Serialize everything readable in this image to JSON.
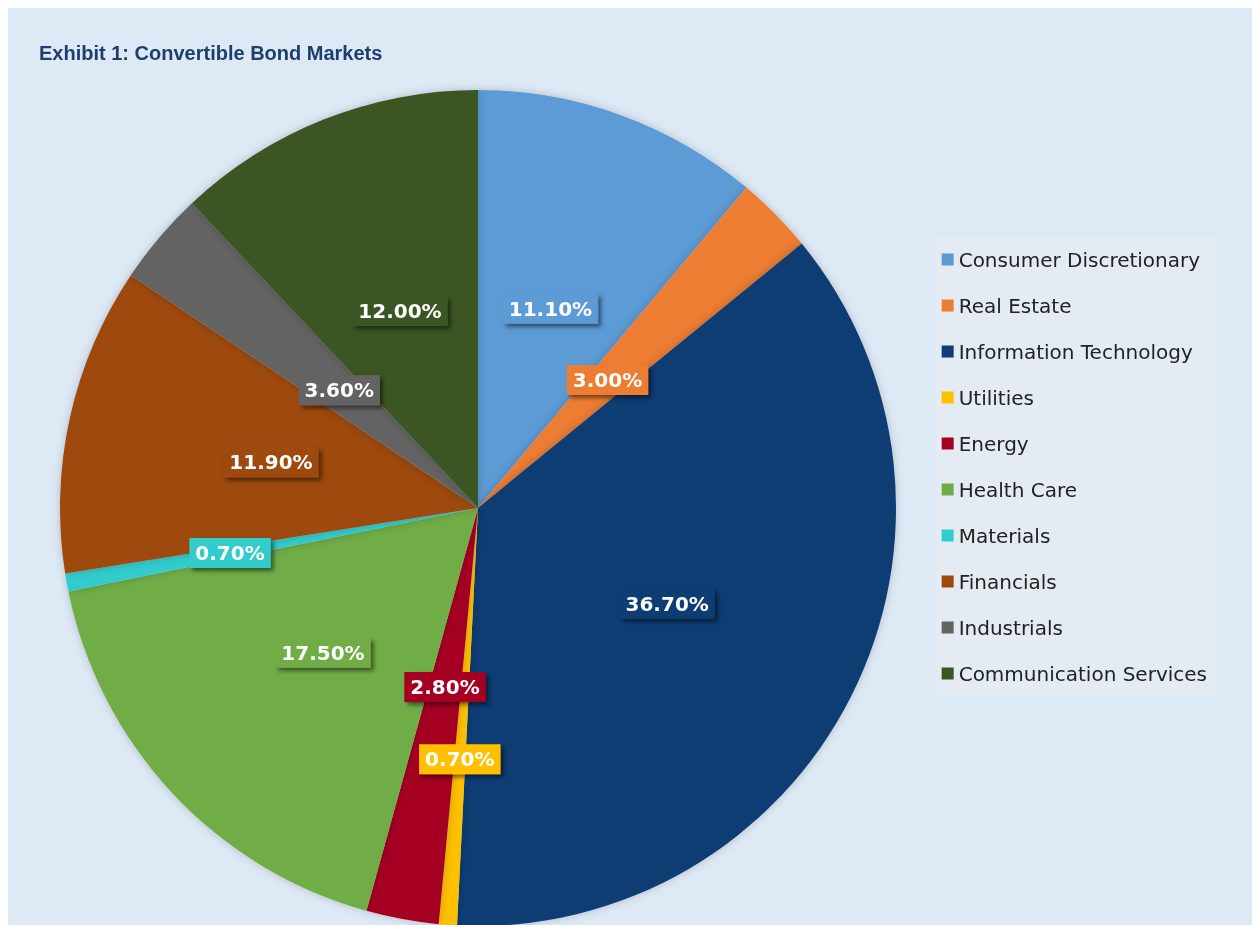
{
  "chart_data": {
    "type": "pie",
    "title": "Exhibit 1: Convertible Bond Markets",
    "categories": [
      "Consumer Discretionary",
      "Real Estate",
      "Information Technology",
      "Utilities",
      "Energy",
      "Health Care",
      "Materials",
      "Financials",
      "Industrials",
      "Communication Services"
    ],
    "values": [
      11.1,
      3.0,
      36.7,
      0.7,
      2.8,
      17.5,
      0.7,
      11.9,
      3.6,
      12.0
    ],
    "value_labels": [
      "11.10%",
      "3.00%",
      "36.70%",
      "0.70%",
      "2.80%",
      "17.50%",
      "0.70%",
      "11.90%",
      "3.60%",
      "12.00%"
    ],
    "colors": [
      "#5b9bd5",
      "#ed7d31",
      "#0f3c73",
      "#ffc000",
      "#a50021",
      "#70ad47",
      "#33cccc",
      "#9e480e",
      "#636363",
      "#3a5623"
    ],
    "legend": "right"
  }
}
